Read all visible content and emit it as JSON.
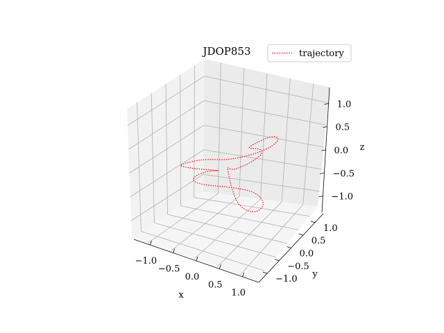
{
  "chart_data": {
    "type": "line",
    "projection": "3d",
    "title": "JDOP853",
    "xlabel": "x",
    "ylabel": "y",
    "zlabel": "z",
    "xlim": [
      -1.35,
      1.35
    ],
    "ylim": [
      -1.35,
      1.35
    ],
    "zlim": [
      -1.35,
      1.35
    ],
    "x_ticks": [
      -1.0,
      -0.5,
      0.0,
      0.5,
      1.0
    ],
    "y_ticks": [
      -1.0,
      -0.5,
      0.0,
      0.5,
      1.0
    ],
    "z_ticks": [
      -1.0,
      -0.5,
      0.0,
      0.5,
      1.0
    ],
    "x_tick_labels": [
      "−1.0",
      "−0.5",
      "0.0",
      "0.5",
      "1.0"
    ],
    "y_tick_labels": [
      "−1.0",
      "−0.5",
      "0.0",
      "0.5",
      "1.0"
    ],
    "z_tick_labels": [
      "−1.0",
      "−0.5",
      "0.0",
      "0.5",
      "1.0"
    ],
    "grid": true,
    "legend_position": "top-right",
    "series": [
      {
        "name": "trajectory",
        "color": "#ff0000",
        "linestyle": "dotted",
        "x": [
          0.0,
          0.18,
          0.35,
          0.55,
          0.72,
          0.8,
          0.72,
          0.55,
          0.38,
          0.25,
          0.3,
          0.5,
          0.7,
          0.85,
          0.8,
          0.6,
          0.35,
          0.1,
          -0.15,
          -0.4,
          -0.62,
          -0.78,
          -0.85,
          -0.78,
          -0.6,
          -0.4,
          -0.25,
          -0.2,
          -0.3,
          -0.5,
          -0.7,
          -0.82,
          -0.8,
          -0.62,
          -0.4,
          -0.15,
          0.1,
          0.35,
          0.6,
          0.8,
          0.92,
          0.88,
          0.7,
          0.45,
          0.2,
          0.0
        ],
        "y": [
          0.0,
          -0.15,
          -0.3,
          -0.35,
          -0.28,
          -0.1,
          0.1,
          0.25,
          0.35,
          0.45,
          0.6,
          0.72,
          0.7,
          0.55,
          0.35,
          0.2,
          0.12,
          0.1,
          0.1,
          0.08,
          0.0,
          -0.15,
          -0.32,
          -0.45,
          -0.5,
          -0.42,
          -0.25,
          -0.05,
          0.15,
          0.3,
          0.35,
          0.25,
          0.05,
          -0.12,
          -0.22,
          -0.25,
          -0.22,
          -0.15,
          -0.1,
          -0.12,
          -0.22,
          -0.35,
          -0.42,
          -0.38,
          -0.2,
          0.0
        ],
        "z": [
          0.0,
          0.1,
          0.25,
          0.42,
          0.55,
          0.6,
          0.55,
          0.45,
          0.35,
          0.28,
          0.3,
          0.4,
          0.5,
          0.55,
          0.52,
          0.42,
          0.3,
          0.18,
          0.08,
          0.02,
          -0.02,
          -0.05,
          -0.05,
          0.0,
          0.05,
          0.05,
          0.0,
          -0.1,
          -0.22,
          -0.35,
          -0.45,
          -0.5,
          -0.5,
          -0.45,
          -0.38,
          -0.32,
          -0.28,
          -0.28,
          -0.3,
          -0.35,
          -0.42,
          -0.5,
          -0.52,
          -0.45,
          -0.25,
          0.0
        ]
      }
    ]
  }
}
